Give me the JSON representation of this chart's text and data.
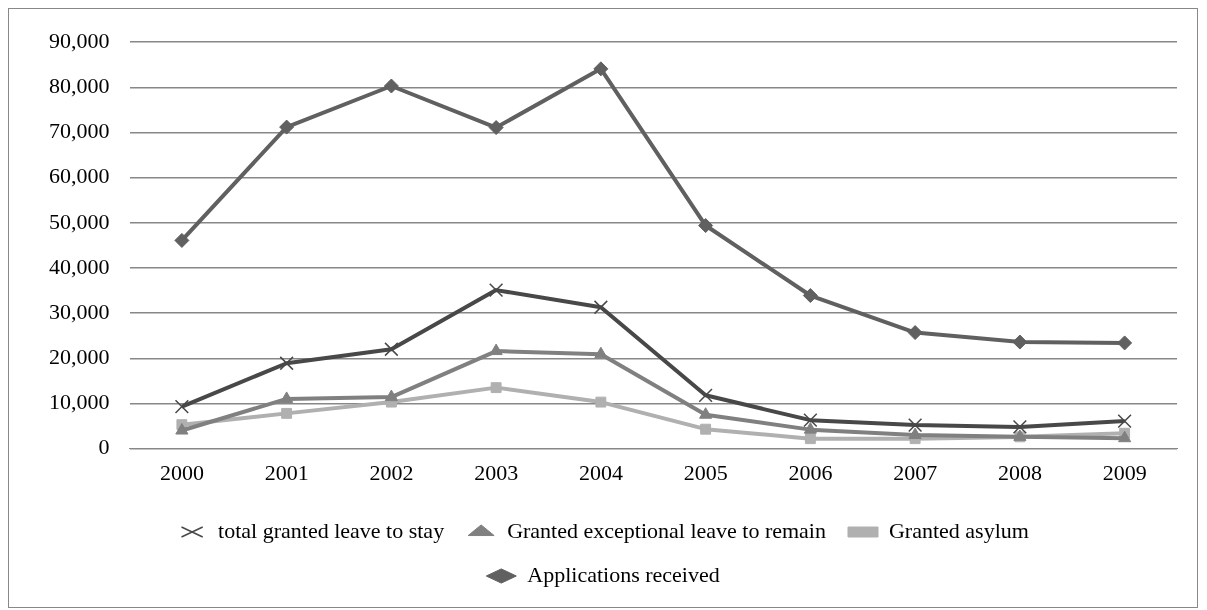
{
  "chart_data": {
    "type": "line",
    "categories": [
      "2000",
      "2001",
      "2002",
      "2003",
      "2004",
      "2005",
      "2006",
      "2007",
      "2008",
      "2009"
    ],
    "ylim": [
      0,
      90000
    ],
    "yticks": [
      0,
      {
        "value": 10000,
        "label": "10,000"
      },
      {
        "value": 20000,
        "label": "20,000"
      },
      {
        "value": 30000,
        "label": "30,000"
      },
      {
        "value": 40000,
        "label": "40,000"
      },
      {
        "value": 50000,
        "label": "50,000"
      },
      {
        "value": 60000,
        "label": "60,000"
      },
      {
        "value": 70000,
        "label": "70,000"
      },
      {
        "value": 80000,
        "label": "80,000"
      },
      {
        "value": 90000,
        "label": "90,000"
      }
    ],
    "grid": "y",
    "legend": "bottom",
    "line_style": "solid",
    "series": [
      {
        "name": "Applications received",
        "color": "#606060",
        "marker": "diamond",
        "values": [
          46100,
          71200,
          80300,
          71100,
          84100,
          49400,
          33900,
          25700,
          23600,
          23400
        ]
      },
      {
        "name": "Granted asylum",
        "color": "#b0b0b0",
        "marker": "square",
        "values": [
          5300,
          7800,
          10300,
          13500,
          10300,
          4300,
          2200,
          2200,
          2600,
          3400
        ]
      },
      {
        "name": "Granted exceptional leave to remain",
        "color": "#808080",
        "marker": "triangle",
        "values": [
          4000,
          11000,
          11400,
          21600,
          20900,
          7500,
          4200,
          3000,
          2600,
          2300
        ]
      },
      {
        "name": "total granted leave to stay",
        "color": "#484848",
        "marker": "cross",
        "values": [
          9300,
          18900,
          22000,
          35100,
          31300,
          11800,
          6300,
          5200,
          4800,
          6100
        ]
      }
    ]
  }
}
